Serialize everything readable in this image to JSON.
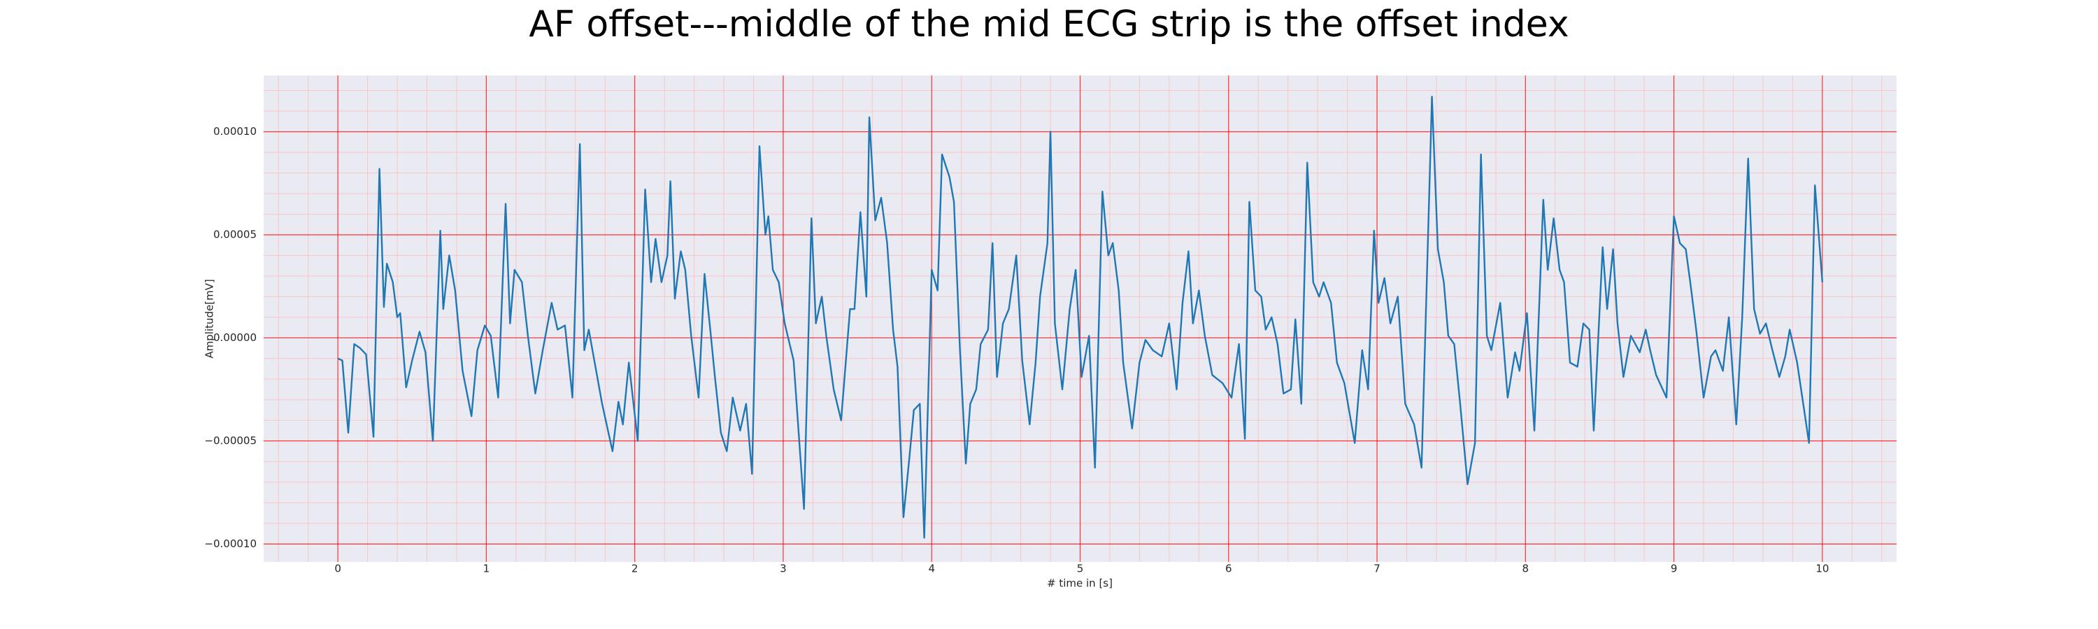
{
  "chart_data": {
    "type": "line",
    "title": "AF offset---middle of the mid ECG strip is the offset index",
    "xlabel": "# time in [s]",
    "ylabel": "Amplitude[mV]",
    "color": "#1f77b4",
    "grid": true,
    "grid_color": "#ff0000",
    "minor_grid_color": "#ffb0b0",
    "minor_grid": {
      "x": 0.2,
      "y": 1e-05
    },
    "xlim": [
      -0.5,
      10.5
    ],
    "ylim": [
      -0.0001087,
      0.0001273
    ],
    "xticks": [
      0,
      1,
      2,
      3,
      4,
      5,
      6,
      7,
      8,
      9,
      10
    ],
    "yticks": [
      {
        "value": -0.0001,
        "label": "−0.00010"
      },
      {
        "value": -5e-05,
        "label": "−0.00005"
      },
      {
        "value": 0,
        "label": "0.00000"
      },
      {
        "value": 5e-05,
        "label": "0.00005"
      },
      {
        "value": 0.0001,
        "label": "0.00010"
      }
    ],
    "x": [
      0.0,
      0.03,
      0.07,
      0.11,
      0.15,
      0.19,
      0.24,
      0.28,
      0.31,
      0.33,
      0.37,
      0.4,
      0.42,
      0.46,
      0.5,
      0.55,
      0.59,
      0.64,
      0.69,
      0.71,
      0.75,
      0.79,
      0.84,
      0.9,
      0.94,
      0.99,
      1.03,
      1.08,
      1.13,
      1.16,
      1.19,
      1.24,
      1.28,
      1.33,
      1.38,
      1.44,
      1.48,
      1.53,
      1.58,
      1.63,
      1.66,
      1.69,
      1.73,
      1.78,
      1.85,
      1.89,
      1.92,
      1.96,
      2.02,
      2.07,
      2.11,
      2.14,
      2.18,
      2.22,
      2.24,
      2.27,
      2.31,
      2.34,
      2.38,
      2.43,
      2.47,
      2.51,
      2.54,
      2.58,
      2.62,
      2.66,
      2.71,
      2.75,
      2.79,
      2.84,
      2.88,
      2.9,
      2.93,
      2.97,
      3.01,
      3.07,
      3.14,
      3.19,
      3.22,
      3.26,
      3.29,
      3.34,
      3.39,
      3.45,
      3.48,
      3.52,
      3.56,
      3.58,
      3.62,
      3.66,
      3.7,
      3.74,
      3.77,
      3.81,
      3.85,
      3.88,
      3.92,
      3.95,
      4.0,
      4.04,
      4.07,
      4.12,
      4.15,
      4.19,
      4.23,
      4.26,
      4.3,
      4.33,
      4.38,
      4.41,
      4.44,
      4.48,
      4.52,
      4.57,
      4.61,
      4.66,
      4.7,
      4.73,
      4.78,
      4.8,
      4.83,
      4.88,
      4.93,
      4.97,
      5.01,
      5.06,
      5.1,
      5.15,
      5.19,
      5.22,
      5.26,
      5.29,
      5.35,
      5.4,
      5.44,
      5.49,
      5.55,
      5.6,
      5.65,
      5.69,
      5.73,
      5.76,
      5.8,
      5.84,
      5.89,
      5.96,
      6.02,
      6.07,
      6.11,
      6.14,
      6.18,
      6.22,
      6.25,
      6.29,
      6.33,
      6.37,
      6.42,
      6.45,
      6.49,
      6.53,
      6.57,
      6.61,
      6.64,
      6.69,
      6.73,
      6.78,
      6.85,
      6.9,
      6.94,
      6.98,
      7.01,
      7.05,
      7.09,
      7.14,
      7.19,
      7.25,
      7.3,
      7.37,
      7.41,
      7.45,
      7.48,
      7.52,
      7.56,
      7.61,
      7.66,
      7.7,
      7.74,
      7.77,
      7.83,
      7.88,
      7.93,
      7.96,
      8.01,
      8.06,
      8.12,
      8.15,
      8.19,
      8.23,
      8.26,
      8.3,
      8.35,
      8.39,
      8.43,
      8.46,
      8.52,
      8.55,
      8.59,
      8.62,
      8.66,
      8.71,
      8.77,
      8.81,
      8.84,
      8.88,
      8.95,
      9.0,
      9.04,
      9.08,
      9.11,
      9.15,
      9.2,
      9.25,
      9.28,
      9.33,
      9.37,
      9.42,
      9.46,
      9.5,
      9.54,
      9.58,
      9.62,
      9.66,
      9.71,
      9.75,
      9.78,
      9.83,
      9.91,
      9.95,
      10.0
    ],
    "values": [
      -1e-05,
      -1.1e-05,
      -4.6e-05,
      -3e-06,
      -5e-06,
      -8e-06,
      -4.8e-05,
      8.2e-05,
      1.5e-05,
      3.6e-05,
      2.7e-05,
      1e-05,
      1.2e-05,
      -2.4e-05,
      -1.1e-05,
      3e-06,
      -7e-06,
      -5e-05,
      5.2e-05,
      1.4e-05,
      4e-05,
      2.3e-05,
      -1.6e-05,
      -3.8e-05,
      -6e-06,
      6e-06,
      1e-06,
      -2.9e-05,
      6.5e-05,
      7e-06,
      3.3e-05,
      2.7e-05,
      1e-06,
      -2.7e-05,
      -6e-06,
      1.7e-05,
      4e-06,
      6e-06,
      -2.9e-05,
      9.4e-05,
      -6e-06,
      4e-06,
      -1.2e-05,
      -3.2e-05,
      -5.5e-05,
      -3.1e-05,
      -4.2e-05,
      -1.2e-05,
      -5e-05,
      7.2e-05,
      2.7e-05,
      4.8e-05,
      2.7e-05,
      4e-05,
      7.6e-05,
      1.9e-05,
      4.2e-05,
      3.3e-05,
      1e-06,
      -2.9e-05,
      3.1e-05,
      3e-06,
      -1.9e-05,
      -4.6e-05,
      -5.5e-05,
      -2.9e-05,
      -4.5e-05,
      -3.2e-05,
      -6.6e-05,
      9.3e-05,
      5e-05,
      5.9e-05,
      3.3e-05,
      2.7e-05,
      7e-06,
      -1.1e-05,
      -8.3e-05,
      5.8e-05,
      7e-06,
      2e-05,
      1e-06,
      -2.5e-05,
      -4e-05,
      1.4e-05,
      1.4e-05,
      6.1e-05,
      2e-05,
      0.000107,
      5.7e-05,
      6.8e-05,
      4.6e-05,
      4e-06,
      -1.4e-05,
      -8.7e-05,
      -5.8e-05,
      -3.5e-05,
      -3.2e-05,
      -9.7e-05,
      3.3e-05,
      2.3e-05,
      8.9e-05,
      7.8e-05,
      6.6e-05,
      -5e-06,
      -6.1e-05,
      -3.2e-05,
      -2.5e-05,
      -3e-06,
      4e-06,
      4.6e-05,
      -1.9e-05,
      7e-06,
      1.4e-05,
      4e-05,
      -1.1e-05,
      -4.2e-05,
      -1.2e-05,
      2e-05,
      4.6e-05,
      0.0001,
      7e-06,
      -2.5e-05,
      1.4e-05,
      3.3e-05,
      -1.9e-05,
      1e-06,
      -6.3e-05,
      7.1e-05,
      4e-05,
      4.6e-05,
      2.3e-05,
      -1.2e-05,
      -4.4e-05,
      -1.2e-05,
      -1e-06,
      -6e-06,
      -9e-06,
      7e-06,
      -2.5e-05,
      1.7e-05,
      4.2e-05,
      7e-06,
      2.3e-05,
      1e-06,
      -1.8e-05,
      -2.2e-05,
      -2.9e-05,
      -3e-06,
      -4.9e-05,
      6.6e-05,
      2.3e-05,
      2e-05,
      4e-06,
      1e-05,
      -3e-06,
      -2.7e-05,
      -2.5e-05,
      9e-06,
      -3.2e-05,
      8.5e-05,
      2.7e-05,
      2e-05,
      2.7e-05,
      1.7e-05,
      -1.2e-05,
      -2.2e-05,
      -5.1e-05,
      -6e-06,
      -2.5e-05,
      5.2e-05,
      1.7e-05,
      2.9e-05,
      7e-06,
      2e-05,
      -3.2e-05,
      -4.2e-05,
      -6.3e-05,
      0.000117,
      4.3e-05,
      2.7e-05,
      1e-06,
      -3e-06,
      -3.2e-05,
      -7.1e-05,
      -5.1e-05,
      8.9e-05,
      1e-06,
      -6e-06,
      1.7e-05,
      -2.9e-05,
      -7e-06,
      -1.6e-05,
      1.2e-05,
      -4.5e-05,
      6.7e-05,
      3.3e-05,
      5.8e-05,
      3.3e-05,
      2.7e-05,
      -1.2e-05,
      -1.4e-05,
      7e-06,
      4e-06,
      -4.5e-05,
      4.4e-05,
      1.4e-05,
      4.3e-05,
      7e-06,
      -1.9e-05,
      1e-06,
      -7e-06,
      4e-06,
      -6e-06,
      -1.8e-05,
      -2.9e-05,
      5.9e-05,
      4.6e-05,
      4.3e-05,
      2.7e-05,
      4e-06,
      -2.9e-05,
      -9e-06,
      -6e-06,
      -1.6e-05,
      1e-05,
      -4.2e-05,
      1e-05,
      8.7e-05,
      1.4e-05,
      2e-06,
      7e-06,
      -5e-06,
      -1.9e-05,
      -9e-06,
      4e-06,
      -1.2e-05,
      -5.1e-05,
      7.4e-05,
      2.7e-05
    ]
  }
}
